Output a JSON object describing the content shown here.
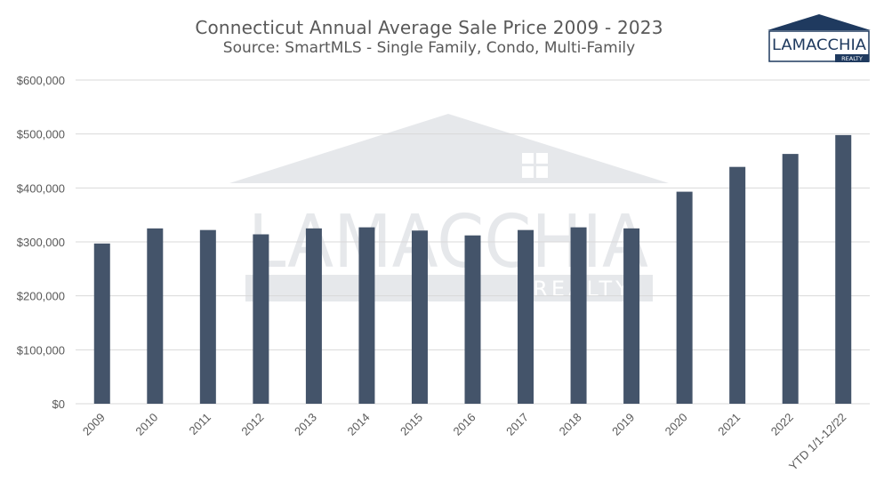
{
  "header": {
    "title": "Connecticut Annual Average Sale Price 2009 - 2023",
    "subtitle": "Source: SmartMLS - Single Family, Condo, Multi-Family"
  },
  "logo": {
    "wordmark": "LAMACCHIA",
    "tagline": "REALTY"
  },
  "watermark": {
    "wordmark": "LAMACCHIA",
    "tagline": "REALTY"
  },
  "colors": {
    "bar": "#44546a",
    "grid": "#d9d9d9",
    "text": "#595959",
    "brand": "#1f3a5f"
  },
  "chart_data": {
    "type": "bar",
    "title": "Connecticut Annual Average Sale Price 2009 - 2023",
    "subtitle": "Source: SmartMLS - Single Family, Condo, Multi-Family",
    "categories": [
      "2009",
      "2010",
      "2011",
      "2012",
      "2013",
      "2014",
      "2015",
      "2016",
      "2017",
      "2018",
      "2019",
      "2020",
      "2021",
      "2022",
      "YTD 1/1-12/22"
    ],
    "values": [
      297000,
      325000,
      322000,
      314000,
      325000,
      327000,
      321000,
      312000,
      322000,
      327000,
      325000,
      393000,
      439000,
      463000,
      498000
    ],
    "xlabel": "",
    "ylabel": "",
    "ylim": [
      0,
      600000
    ],
    "yticks": [
      0,
      100000,
      200000,
      300000,
      400000,
      500000,
      600000
    ],
    "ytick_labels": [
      "$0",
      "$100,000",
      "$200,000",
      "$300,000",
      "$400,000",
      "$500,000",
      "$600,000"
    ],
    "grid": true,
    "legend": "none"
  }
}
